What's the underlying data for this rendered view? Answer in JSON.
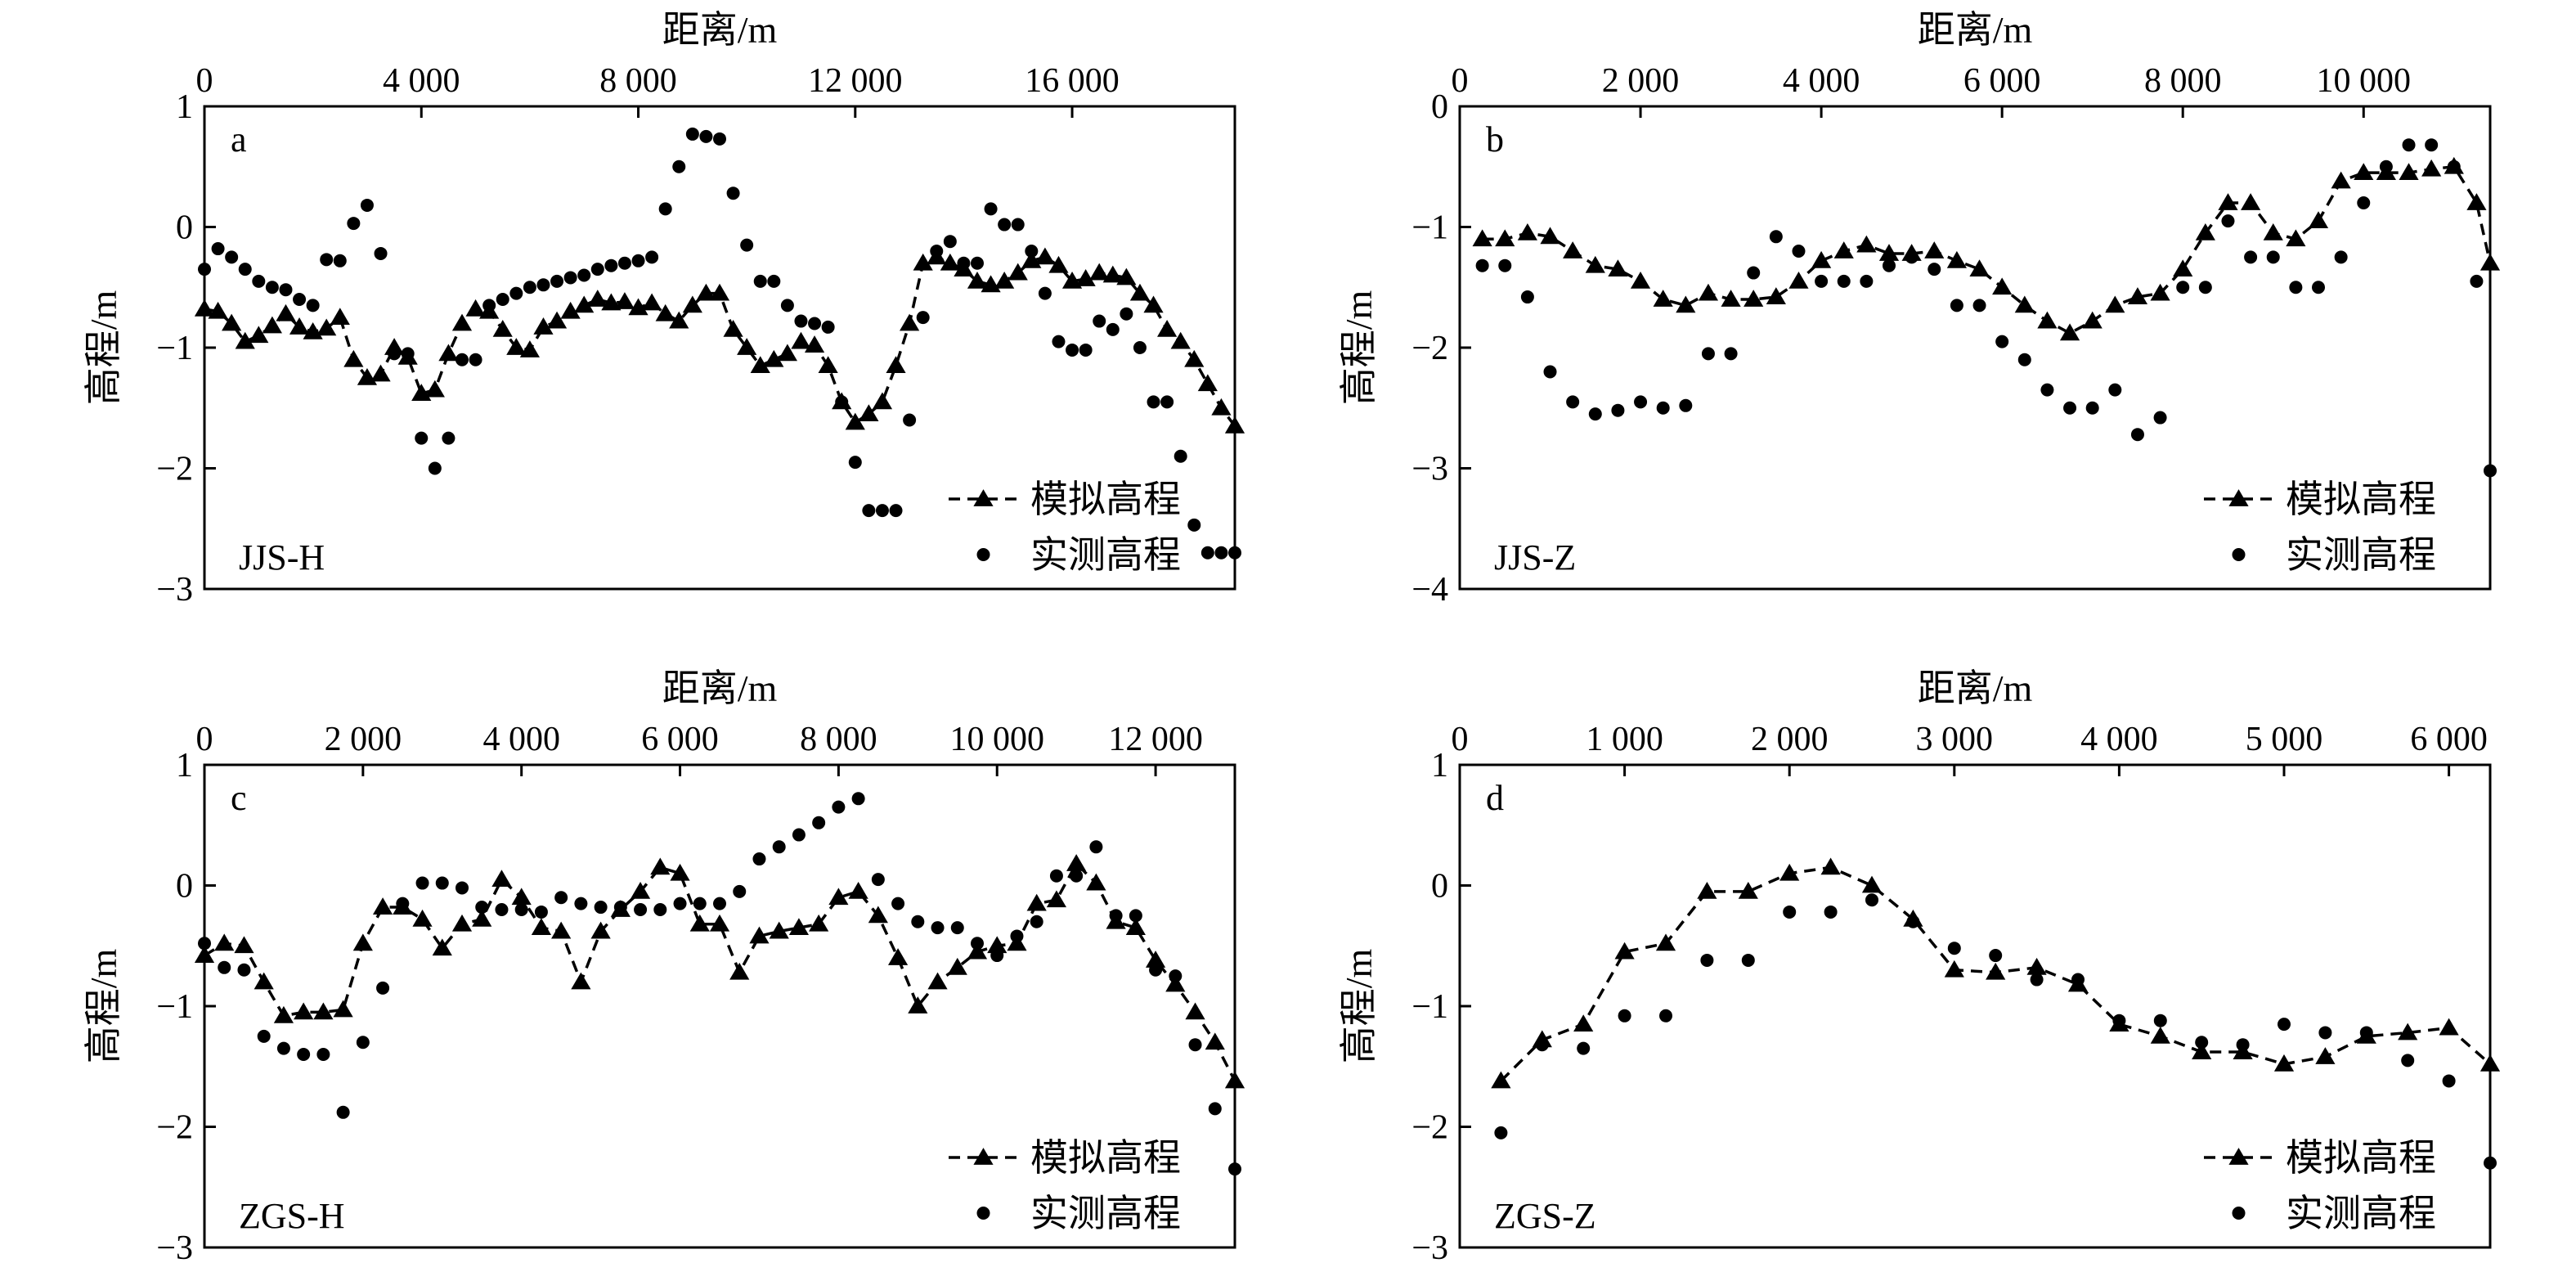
{
  "chart_data": [
    {
      "type": "line",
      "panel_letter": "a",
      "profile_label": "JJS-H",
      "xlabel": "距离/m",
      "ylabel": "高程/m",
      "xlim": [
        0,
        19000
      ],
      "ylim": [
        -3,
        1
      ],
      "x_ticks": [
        0,
        4000,
        8000,
        12000,
        16000
      ],
      "x_tick_labels": [
        "0",
        "4 000",
        "8 000",
        "12 000",
        "16 000"
      ],
      "y_ticks": [
        1,
        0,
        -1,
        -2,
        -3
      ],
      "y_tick_labels": [
        "1",
        "0",
        "−1",
        "−2",
        "−3"
      ],
      "legend": {
        "position": "bottom-right",
        "items": [
          "模拟高程",
          "实测高程"
        ]
      },
      "series": [
        {
          "name": "模拟高程",
          "style": "dashed-line-triangle",
          "x": [
            0,
            250,
            500,
            750,
            1000,
            1250,
            1500,
            1750,
            2000,
            2250,
            2500,
            2750,
            3000,
            3250,
            3500,
            3750,
            4000,
            4250,
            4500,
            4750,
            5000,
            5250,
            5500,
            5750,
            6000,
            6250,
            6500,
            6750,
            7000,
            7250,
            7500,
            7750,
            8000,
            8250,
            8500,
            8750,
            9000,
            9250,
            9500,
            9750,
            10000,
            10250,
            10500,
            10750,
            11000,
            11250,
            11500,
            11750,
            12000,
            12250,
            12500,
            12750,
            13000,
            13250,
            13500,
            13750,
            14000,
            14250,
            14500,
            14750,
            15000,
            15250,
            15500,
            15750,
            16000,
            16250,
            16500,
            16750,
            17000,
            17250,
            17500,
            17750,
            18000,
            18250,
            18500,
            18750,
            19000
          ],
          "y": [
            -0.68,
            -0.7,
            -0.8,
            -0.95,
            -0.9,
            -0.82,
            -0.72,
            -0.83,
            -0.87,
            -0.84,
            -0.75,
            -1.1,
            -1.25,
            -1.22,
            -1.0,
            -1.08,
            -1.38,
            -1.35,
            -1.05,
            -0.8,
            -0.68,
            -0.7,
            -0.85,
            -1.0,
            -1.02,
            -0.83,
            -0.78,
            -0.7,
            -0.65,
            -0.6,
            -0.63,
            -0.62,
            -0.67,
            -0.63,
            -0.72,
            -0.78,
            -0.65,
            -0.55,
            -0.55,
            -0.85,
            -1.0,
            -1.15,
            -1.1,
            -1.05,
            -0.95,
            -0.98,
            -1.15,
            -1.45,
            -1.62,
            -1.55,
            -1.45,
            -1.15,
            -0.8,
            -0.3,
            -0.25,
            -0.3,
            -0.35,
            -0.45,
            -0.48,
            -0.45,
            -0.38,
            -0.28,
            -0.25,
            -0.32,
            -0.45,
            -0.43,
            -0.38,
            -0.4,
            -0.42,
            -0.55,
            -0.65,
            -0.85,
            -0.95,
            -1.1,
            -1.3,
            -1.5,
            -1.65
          ]
        },
        {
          "name": "实测高程",
          "style": "dots",
          "x": [
            0,
            250,
            500,
            750,
            1000,
            1250,
            1500,
            1750,
            2000,
            2250,
            2500,
            2750,
            3000,
            3250,
            3500,
            3750,
            4000,
            4250,
            4500,
            4750,
            5000,
            5250,
            5500,
            5750,
            6000,
            6250,
            6500,
            6750,
            7000,
            7250,
            7500,
            7750,
            8000,
            8250,
            8500,
            8750,
            9000,
            9250,
            9500,
            9750,
            10000,
            10250,
            10500,
            10750,
            11000,
            11250,
            11500,
            11750,
            12000,
            12250,
            12500,
            12750,
            13000,
            13250,
            13500,
            13750,
            14000,
            14250,
            14500,
            14750,
            15000,
            15250,
            15500,
            15750,
            16000,
            16250,
            16500,
            16750,
            17000,
            17250,
            17500,
            17750,
            18000,
            18250,
            18500,
            18750,
            19000
          ],
          "y": [
            -0.35,
            -0.18,
            -0.25,
            -0.35,
            -0.45,
            -0.5,
            -0.52,
            -0.6,
            -0.65,
            -0.27,
            -0.28,
            0.03,
            0.18,
            -0.22,
            -1.05,
            -1.05,
            -1.75,
            -2.0,
            -1.75,
            -1.1,
            -1.1,
            -0.65,
            -0.6,
            -0.55,
            -0.5,
            -0.48,
            -0.45,
            -0.42,
            -0.4,
            -0.35,
            -0.32,
            -0.3,
            -0.28,
            -0.25,
            0.15,
            0.5,
            0.77,
            0.75,
            0.73,
            0.28,
            -0.15,
            -0.45,
            -0.45,
            -0.65,
            -0.78,
            -0.8,
            -0.83,
            -1.45,
            -1.95,
            -2.35,
            -2.35,
            -2.35,
            -1.6,
            -0.75,
            -0.2,
            -0.12,
            -0.3,
            -0.3,
            0.15,
            0.02,
            0.02,
            -0.2,
            -0.55,
            -0.95,
            -1.02,
            -1.02,
            -0.78,
            -0.85,
            -0.72,
            -1.0,
            -1.45,
            -1.45,
            -1.9,
            -2.47,
            -2.7,
            -2.7,
            -2.7
          ]
        }
      ]
    },
    {
      "type": "line",
      "panel_letter": "b",
      "profile_label": "JJS-Z",
      "xlabel": "距离/m",
      "ylabel": "高程/m",
      "xlim": [
        0,
        11400
      ],
      "ylim": [
        -4,
        0
      ],
      "x_ticks": [
        0,
        2000,
        4000,
        6000,
        8000,
        10000
      ],
      "x_tick_labels": [
        "0",
        "2 000",
        "4 000",
        "6 000",
        "8 000",
        "10 000"
      ],
      "y_ticks": [
        0,
        -1,
        -2,
        -3,
        -4
      ],
      "y_tick_labels": [
        "0",
        "−1",
        "−2",
        "−3",
        "−4"
      ],
      "legend": {
        "position": "bottom-right",
        "items": [
          "模拟高程",
          "实测高程"
        ]
      },
      "series": [
        {
          "name": "模拟高程",
          "style": "dashed-line-triangle",
          "x": [
            250,
            500,
            750,
            1000,
            1250,
            1500,
            1750,
            2000,
            2250,
            2500,
            2750,
            3000,
            3250,
            3500,
            3750,
            4000,
            4250,
            4500,
            4750,
            5000,
            5250,
            5500,
            5750,
            6000,
            6250,
            6500,
            6750,
            7000,
            7250,
            7500,
            7750,
            8000,
            8250,
            8500,
            8750,
            9000,
            9250,
            9500,
            9750,
            10000,
            10250,
            10500,
            10750,
            11000,
            11250,
            11400
          ],
          "y": [
            -1.1,
            -1.1,
            -1.05,
            -1.08,
            -1.2,
            -1.32,
            -1.35,
            -1.45,
            -1.6,
            -1.65,
            -1.55,
            -1.6,
            -1.6,
            -1.58,
            -1.45,
            -1.28,
            -1.2,
            -1.15,
            -1.22,
            -1.22,
            -1.2,
            -1.28,
            -1.35,
            -1.5,
            -1.65,
            -1.78,
            -1.88,
            -1.78,
            -1.65,
            -1.58,
            -1.55,
            -1.35,
            -1.05,
            -0.8,
            -0.8,
            -1.05,
            -1.1,
            -0.95,
            -0.62,
            -0.55,
            -0.55,
            -0.55,
            -0.52,
            -0.5,
            -0.8,
            -1.3
          ]
        },
        {
          "name": "实测高程",
          "style": "dots",
          "x": [
            250,
            500,
            750,
            1000,
            1250,
            1500,
            1750,
            2000,
            2250,
            2500,
            2750,
            3000,
            3250,
            3500,
            3750,
            4000,
            4250,
            4500,
            4750,
            5000,
            5250,
            5500,
            5750,
            6000,
            6250,
            6500,
            6750,
            7000,
            7250,
            7500,
            7750,
            8000,
            8250,
            8500,
            8750,
            9000,
            9250,
            9500,
            9750,
            10000,
            10250,
            10500,
            10750,
            11000,
            11250,
            11400
          ],
          "y": [
            -1.32,
            -1.32,
            -1.58,
            -2.2,
            -2.45,
            -2.55,
            -2.52,
            -2.45,
            -2.5,
            -2.48,
            -2.05,
            -2.05,
            -1.38,
            -1.08,
            -1.2,
            -1.45,
            -1.45,
            -1.45,
            -1.32,
            -1.25,
            -1.35,
            -1.65,
            -1.65,
            -1.95,
            -2.1,
            -2.35,
            -2.5,
            -2.5,
            -2.35,
            -2.72,
            -2.58,
            -1.5,
            -1.5,
            -0.95,
            -1.25,
            -1.25,
            -1.5,
            -1.5,
            -1.25,
            -0.8,
            -0.5,
            -0.32,
            -0.32,
            -0.5,
            -1.45,
            -3.02
          ]
        }
      ]
    },
    {
      "type": "line",
      "panel_letter": "c",
      "profile_label": "ZGS-H",
      "xlabel": "距离/m",
      "ylabel": "高程/m",
      "xlim": [
        0,
        13000
      ],
      "ylim": [
        -3,
        1
      ],
      "x_ticks": [
        0,
        2000,
        4000,
        6000,
        8000,
        10000,
        12000
      ],
      "x_tick_labels": [
        "0",
        "2 000",
        "4 000",
        "6 000",
        "8 000",
        "10 000",
        "12 000"
      ],
      "y_ticks": [
        1,
        0,
        -1,
        -2,
        -3
      ],
      "y_tick_labels": [
        "1",
        "0",
        "−1",
        "−2",
        "−3"
      ],
      "legend": {
        "position": "bottom-right",
        "items": [
          "模拟高程",
          "实测高程"
        ]
      },
      "series": [
        {
          "name": "模拟高程",
          "style": "dashed-line-triangle",
          "x": [
            0,
            250,
            500,
            750,
            1000,
            1250,
            1500,
            1750,
            2000,
            2250,
            2500,
            2750,
            3000,
            3250,
            3500,
            3750,
            4000,
            4250,
            4500,
            4750,
            5000,
            5250,
            5500,
            5750,
            6000,
            6250,
            6500,
            6750,
            7000,
            7250,
            7500,
            7750,
            8000,
            8250,
            8500,
            8750,
            9000,
            9250,
            9500,
            9750,
            10000,
            10250,
            10500,
            10750,
            11000,
            11250,
            11500,
            11750,
            12000,
            12250,
            12500,
            12750,
            13000
          ],
          "y": [
            -0.58,
            -0.48,
            -0.5,
            -0.8,
            -1.08,
            -1.05,
            -1.05,
            -1.03,
            -0.48,
            -0.18,
            -0.18,
            -0.28,
            -0.52,
            -0.32,
            -0.28,
            0.05,
            -0.1,
            -0.35,
            -0.38,
            -0.8,
            -0.38,
            -0.2,
            -0.05,
            0.15,
            0.1,
            -0.32,
            -0.32,
            -0.72,
            -0.42,
            -0.38,
            -0.35,
            -0.32,
            -0.1,
            -0.05,
            -0.25,
            -0.6,
            -1.0,
            -0.8,
            -0.68,
            -0.55,
            -0.5,
            -0.48,
            -0.15,
            -0.12,
            0.18,
            0.02,
            -0.3,
            -0.35,
            -0.62,
            -0.82,
            -1.05,
            -1.3,
            -1.62
          ]
        },
        {
          "name": "实测高程",
          "style": "dots",
          "x": [
            0,
            250,
            500,
            750,
            1000,
            1250,
            1500,
            1750,
            2000,
            2250,
            2500,
            2750,
            3000,
            3250,
            3500,
            3750,
            4000,
            4250,
            4500,
            4750,
            5000,
            5250,
            5500,
            5750,
            6000,
            6250,
            6500,
            6750,
            7000,
            7250,
            7500,
            7750,
            8000,
            8250,
            8500,
            8750,
            9000,
            9250,
            9500,
            9750,
            10000,
            10250,
            10500,
            10750,
            11000,
            11250,
            11500,
            11750,
            12000,
            12250,
            12500,
            12750,
            13000
          ],
          "y": [
            -0.48,
            -0.68,
            -0.7,
            -1.25,
            -1.35,
            -1.4,
            -1.4,
            -1.88,
            -1.3,
            -0.85,
            -0.15,
            0.02,
            0.02,
            -0.02,
            -0.18,
            -0.2,
            -0.2,
            -0.22,
            -0.1,
            -0.15,
            -0.18,
            -0.18,
            -0.2,
            -0.2,
            -0.15,
            -0.15,
            -0.15,
            -0.05,
            0.22,
            0.32,
            0.42,
            0.52,
            0.65,
            0.72,
            0.05,
            -0.15,
            -0.3,
            -0.35,
            -0.35,
            -0.48,
            -0.58,
            -0.42,
            -0.3,
            0.08,
            0.08,
            0.32,
            -0.25,
            -0.25,
            -0.7,
            -0.75,
            -1.32,
            -1.85,
            -2.35
          ]
        }
      ]
    },
    {
      "type": "line",
      "panel_letter": "d",
      "profile_label": "ZGS-Z",
      "xlabel": "距离/m",
      "ylabel": "高程/m",
      "xlim": [
        0,
        6250
      ],
      "ylim": [
        -3,
        1
      ],
      "x_ticks": [
        0,
        1000,
        2000,
        3000,
        4000,
        5000,
        6000
      ],
      "x_tick_labels": [
        "0",
        "1 000",
        "2 000",
        "3 000",
        "4 000",
        "5 000",
        "6 000"
      ],
      "y_ticks": [
        1,
        0,
        -1,
        -2,
        -3
      ],
      "y_tick_labels": [
        "1",
        "0",
        "−1",
        "−2",
        "−3"
      ],
      "legend": {
        "position": "bottom-right",
        "items": [
          "模拟高程",
          "实测高程"
        ]
      },
      "series": [
        {
          "name": "模拟高程",
          "style": "dashed-line-triangle",
          "x": [
            250,
            500,
            750,
            1000,
            1250,
            1500,
            1750,
            2000,
            2250,
            2500,
            2750,
            3000,
            3250,
            3500,
            3750,
            4000,
            4250,
            4500,
            4750,
            5000,
            5250,
            5500,
            5750,
            6000,
            6250
          ],
          "y": [
            -1.62,
            -1.28,
            -1.15,
            -0.55,
            -0.48,
            -0.05,
            -0.05,
            0.1,
            0.15,
            0.0,
            -0.28,
            -0.7,
            -0.72,
            -0.68,
            -0.82,
            -1.15,
            -1.25,
            -1.38,
            -1.38,
            -1.48,
            -1.42,
            -1.25,
            -1.22,
            -1.18,
            -1.48
          ]
        },
        {
          "name": "实测高程",
          "style": "dots",
          "x": [
            250,
            500,
            750,
            1000,
            1250,
            1500,
            1750,
            2000,
            2250,
            2500,
            2750,
            3000,
            3250,
            3500,
            3750,
            4000,
            4250,
            4500,
            4750,
            5000,
            5250,
            5500,
            5750,
            6000,
            6250
          ],
          "y": [
            -2.05,
            -1.32,
            -1.35,
            -1.08,
            -1.08,
            -0.62,
            -0.62,
            -0.22,
            -0.22,
            -0.12,
            -0.3,
            -0.52,
            -0.58,
            -0.78,
            -0.78,
            -1.12,
            -1.12,
            -1.3,
            -1.32,
            -1.15,
            -1.22,
            -1.22,
            -1.45,
            -1.62,
            -2.3
          ]
        }
      ]
    }
  ]
}
